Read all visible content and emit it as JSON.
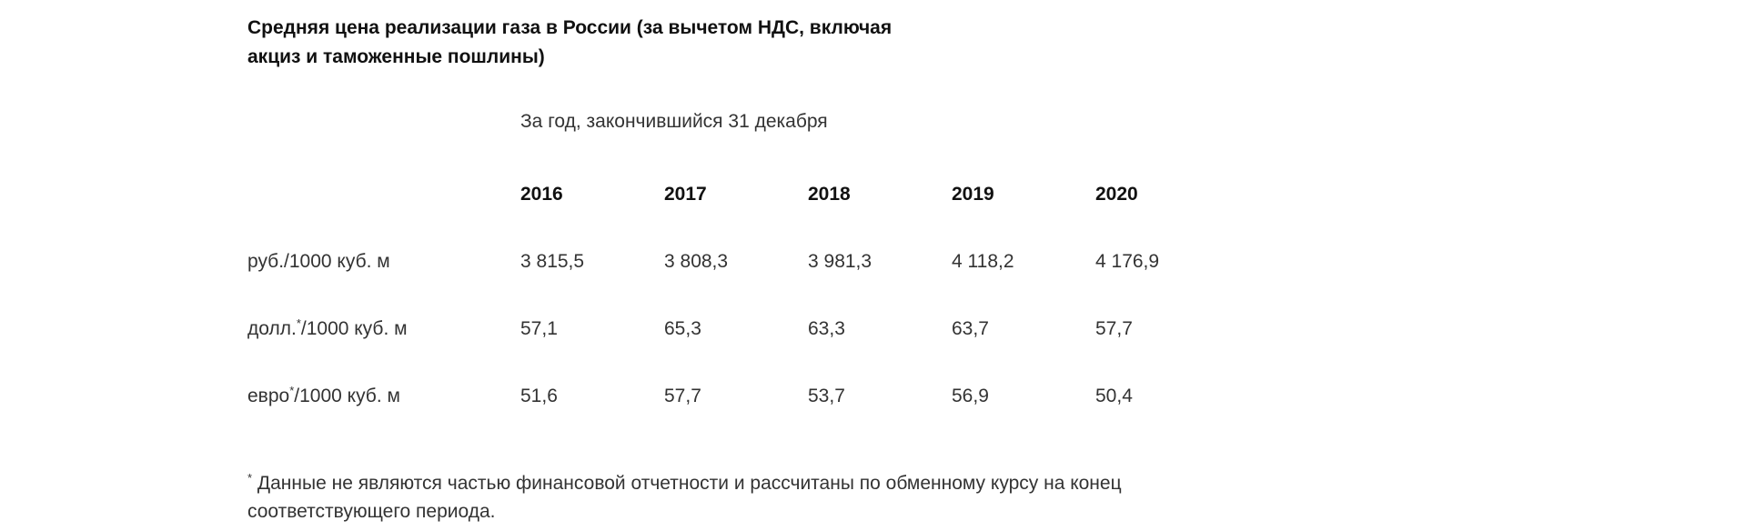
{
  "title": "Средняя цена реализации газа в России (за вычетом НДС, включая акциз и таможенные пошлины)",
  "period_label": "За год, закончившийся 31 декабря",
  "table": {
    "years": [
      "2016",
      "2017",
      "2018",
      "2019",
      "2020"
    ],
    "rows": [
      {
        "unit_prefix": "руб./1000 куб. м",
        "unit_mark": "",
        "unit_suffix": "",
        "values": [
          "3 815,5",
          "3 808,3",
          "3 981,3",
          "4 118,2",
          "4 176,9"
        ]
      },
      {
        "unit_prefix": "долл.",
        "unit_mark": "*",
        "unit_suffix": "/1000 куб. м",
        "values": [
          "57,1",
          "65,3",
          "63,3",
          "63,7",
          "57,7"
        ]
      },
      {
        "unit_prefix": "евро",
        "unit_mark": "*",
        "unit_suffix": "/1000 куб. м",
        "values": [
          "51,6",
          "57,7",
          "53,7",
          "56,9",
          "50,4"
        ]
      }
    ]
  },
  "footnote": {
    "mark": "*",
    "text": " Данные не являются частью финансовой отчетности и рассчитаны по обменному курсу на конец соответствующего периода."
  }
}
